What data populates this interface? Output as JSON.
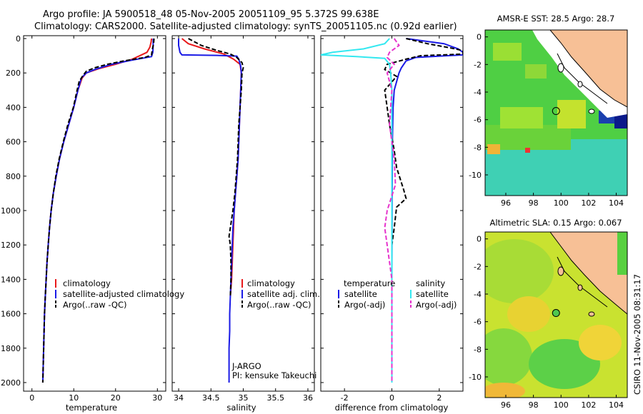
{
  "header": {
    "line1": "Argo profile: JA 5900518_48 05-Nov-2005 20051109_95 5.372S 99.638E",
    "line2": "Climatology: CARS2000. Satellite-adjusted climatology: synTS_20051105.nc (0.92d earlier)"
  },
  "side_text": "CSIRO 11-Nov-2005 08:31:17",
  "colors": {
    "red": "#e8191b",
    "blue": "#1a1ae6",
    "black": "#000000",
    "cyan": "#33e8f0",
    "magenta": "#e633cc",
    "land": "#f7c096"
  },
  "chart_data": [
    {
      "type": "line",
      "name": "temperature-profile",
      "xlabel": "temperature",
      "xlim": [
        -2,
        32
      ],
      "ylim": [
        0,
        2050
      ],
      "xticks": [
        0,
        10,
        20,
        30
      ],
      "yticks": [
        0,
        200,
        400,
        600,
        800,
        1000,
        1200,
        1400,
        1600,
        1800,
        2000
      ],
      "legend": [
        "climatology",
        "satellite-adjusted climatology",
        "Argo(..raw -QC)"
      ],
      "series": [
        {
          "color": "red",
          "style": "solid",
          "points": [
            [
              28.6,
              0
            ],
            [
              28.5,
              20
            ],
            [
              28.2,
              50
            ],
            [
              27.5,
              80
            ],
            [
              24,
              120
            ],
            [
              20,
              150
            ],
            [
              16,
              175
            ],
            [
              13,
              200
            ],
            [
              12,
              230
            ],
            [
              11,
              300
            ],
            [
              10,
              400
            ],
            [
              8.8,
              500
            ],
            [
              7.6,
              600
            ],
            [
              6.6,
              700
            ],
            [
              5.8,
              800
            ],
            [
              5.1,
              900
            ],
            [
              4.6,
              1000
            ],
            [
              4.2,
              1100
            ],
            [
              3.9,
              1200
            ],
            [
              3.6,
              1300
            ],
            [
              3.4,
              1400
            ],
            [
              3.2,
              1500
            ],
            [
              3.0,
              1600
            ],
            [
              2.9,
              1700
            ],
            [
              2.8,
              1800
            ],
            [
              2.7,
              1900
            ],
            [
              2.6,
              2000
            ]
          ]
        },
        {
          "color": "blue",
          "style": "solid",
          "points": [
            [
              29,
              0
            ],
            [
              29,
              40
            ],
            [
              28.9,
              80
            ],
            [
              28.6,
              105
            ],
            [
              24,
              125
            ],
            [
              19,
              150
            ],
            [
              15,
              180
            ],
            [
              13,
              200
            ],
            [
              11.8,
              230
            ],
            [
              11,
              300
            ],
            [
              10,
              400
            ],
            [
              8.8,
              500
            ],
            [
              7.6,
              600
            ],
            [
              6.6,
              700
            ],
            [
              5.8,
              800
            ],
            [
              5.1,
              900
            ],
            [
              4.6,
              1000
            ],
            [
              4.2,
              1100
            ],
            [
              3.9,
              1200
            ],
            [
              3.6,
              1300
            ],
            [
              3.4,
              1400
            ],
            [
              3.2,
              1500
            ],
            [
              3.0,
              1600
            ],
            [
              2.9,
              1700
            ],
            [
              2.8,
              1800
            ],
            [
              2.7,
              1900
            ],
            [
              2.6,
              2000
            ]
          ]
        },
        {
          "color": "black",
          "style": "dashed",
          "points": [
            [
              29.2,
              0
            ],
            [
              29.1,
              30
            ],
            [
              28.8,
              60
            ],
            [
              28.6,
              95
            ],
            [
              27,
              110
            ],
            [
              22,
              130
            ],
            [
              18,
              150
            ],
            [
              15,
              170
            ],
            [
              13,
              190
            ],
            [
              12.2,
              215
            ],
            [
              11.3,
              250
            ],
            [
              10.8,
              300
            ],
            [
              9.9,
              400
            ],
            [
              8.6,
              500
            ],
            [
              7.5,
              600
            ],
            [
              6.5,
              700
            ],
            [
              5.7,
              800
            ],
            [
              5.1,
              900
            ],
            [
              4.6,
              1000
            ],
            [
              4.2,
              1100
            ],
            [
              3.9,
              1200
            ],
            [
              3.6,
              1300
            ],
            [
              3.4,
              1400
            ],
            [
              3.2,
              1500
            ],
            [
              3.0,
              1600
            ],
            [
              2.9,
              1700
            ],
            [
              2.8,
              1800
            ],
            [
              2.7,
              1900
            ],
            [
              2.6,
              2000
            ]
          ]
        }
      ]
    },
    {
      "type": "line",
      "name": "salinity-profile",
      "xlabel": "salinity",
      "xlim": [
        33.9,
        36.1
      ],
      "ylim": [
        0,
        2050
      ],
      "xticks": [
        34,
        34.5,
        35,
        35.5,
        36
      ],
      "legend": [
        "climatology",
        "satellite adj. clim.",
        "Argo(..raw -QC)"
      ],
      "annotations": [
        "J-ARGO",
        "PI: kensuke Takeuchi"
      ],
      "series": [
        {
          "color": "red",
          "style": "solid",
          "points": [
            [
              34.05,
              0
            ],
            [
              34.15,
              30
            ],
            [
              34.4,
              60
            ],
            [
              34.7,
              90
            ],
            [
              34.85,
              120
            ],
            [
              34.95,
              150
            ],
            [
              34.97,
              200
            ],
            [
              34.96,
              300
            ],
            [
              34.95,
              400
            ],
            [
              34.94,
              500
            ],
            [
              34.93,
              600
            ],
            [
              34.92,
              700
            ],
            [
              34.9,
              800
            ],
            [
              34.88,
              900
            ],
            [
              34.86,
              1000
            ],
            [
              34.85,
              1100
            ],
            [
              34.84,
              1200
            ],
            [
              34.83,
              1300
            ],
            [
              34.82,
              1400
            ],
            [
              34.8,
              1500
            ]
          ]
        },
        {
          "color": "blue",
          "style": "solid",
          "points": [
            [
              34.0,
              0
            ],
            [
              34.0,
              40
            ],
            [
              34.02,
              80
            ],
            [
              34.05,
              95
            ],
            [
              34.6,
              98
            ],
            [
              34.9,
              102
            ],
            [
              34.93,
              120
            ],
            [
              34.96,
              160
            ],
            [
              34.97,
              200
            ],
            [
              34.96,
              300
            ],
            [
              34.95,
              400
            ],
            [
              34.94,
              500
            ],
            [
              34.93,
              600
            ],
            [
              34.92,
              700
            ],
            [
              34.9,
              800
            ],
            [
              34.88,
              900
            ],
            [
              34.86,
              1000
            ],
            [
              34.84,
              1100
            ],
            [
              34.83,
              1200
            ],
            [
              34.82,
              1300
            ],
            [
              34.81,
              1400
            ],
            [
              34.8,
              1500
            ],
            [
              34.79,
              1600
            ],
            [
              34.79,
              1700
            ],
            [
              34.78,
              1800
            ],
            [
              34.78,
              1900
            ],
            [
              34.78,
              2000
            ]
          ]
        },
        {
          "color": "black",
          "style": "dashed",
          "points": [
            [
              34.15,
              0
            ],
            [
              34.35,
              40
            ],
            [
              34.6,
              70
            ],
            [
              34.8,
              90
            ],
            [
              34.9,
              110
            ],
            [
              34.98,
              140
            ],
            [
              35.0,
              170
            ],
            [
              34.98,
              200
            ],
            [
              34.97,
              300
            ],
            [
              34.95,
              400
            ],
            [
              34.93,
              500
            ],
            [
              34.92,
              600
            ],
            [
              34.91,
              700
            ],
            [
              34.89,
              800
            ],
            [
              34.87,
              900
            ],
            [
              34.84,
              1000
            ],
            [
              34.8,
              1100
            ],
            [
              34.78,
              1150
            ],
            [
              34.8,
              1200
            ],
            [
              34.81,
              1300
            ],
            [
              34.81,
              1400
            ],
            [
              34.8,
              1500
            ]
          ]
        }
      ]
    },
    {
      "type": "line",
      "name": "difference-profile",
      "xlabel": "difference from climatology",
      "xlim": [
        -3,
        3
      ],
      "ylim": [
        0,
        2050
      ],
      "xticks": [
        -2,
        0,
        2
      ],
      "legend_headers": [
        "temperature",
        "salinity"
      ],
      "legend": [
        "satellite",
        "Argo(-adj)",
        "satellite",
        "Argo(-adj)"
      ],
      "series": [
        {
          "color": "blue",
          "style": "solid",
          "points": [
            [
              0.6,
              0
            ],
            [
              2.2,
              30
            ],
            [
              2.8,
              60
            ],
            [
              3,
              80
            ],
            [
              3,
              95
            ],
            [
              1,
              110
            ],
            [
              0.6,
              130
            ],
            [
              0.4,
              170
            ],
            [
              0.3,
              200
            ],
            [
              0.1,
              300
            ],
            [
              0.05,
              400
            ],
            [
              0.02,
              600
            ],
            [
              0.01,
              1000
            ],
            [
              0,
              1400
            ],
            [
              0,
              2000
            ]
          ]
        },
        {
          "color": "black",
          "style": "dashed",
          "points": [
            [
              0.6,
              0
            ],
            [
              1.5,
              30
            ],
            [
              2.5,
              55
            ],
            [
              3,
              70
            ],
            [
              3,
              90
            ],
            [
              1.2,
              100
            ],
            [
              0.6,
              120
            ],
            [
              -0.2,
              150
            ],
            [
              -0.3,
              180
            ],
            [
              0.2,
              220
            ],
            [
              -0.3,
              300
            ],
            [
              -0.2,
              400
            ],
            [
              -0.1,
              500
            ],
            [
              0.1,
              650
            ],
            [
              0.2,
              750
            ],
            [
              0.5,
              880
            ],
            [
              0.6,
              930
            ],
            [
              0.2,
              980
            ],
            [
              0.1,
              1100
            ],
            [
              0,
              1200
            ],
            [
              0,
              1400
            ],
            [
              0,
              1600
            ],
            [
              0,
              2000
            ]
          ]
        },
        {
          "color": "cyan",
          "style": "solid",
          "points": [
            [
              -0.1,
              0
            ],
            [
              -0.3,
              30
            ],
            [
              -1.2,
              60
            ],
            [
              -2.5,
              80
            ],
            [
              -3,
              95
            ],
            [
              -1.5,
              105
            ],
            [
              -0.3,
              115
            ],
            [
              -0.1,
              150
            ],
            [
              -0.05,
              200
            ],
            [
              0,
              300
            ],
            [
              0,
              2000
            ]
          ]
        },
        {
          "color": "magenta",
          "style": "dashed",
          "points": [
            [
              0.1,
              0
            ],
            [
              0.3,
              40
            ],
            [
              -0.1,
              80
            ],
            [
              -0.2,
              110
            ],
            [
              0.1,
              150
            ],
            [
              -0.2,
              200
            ],
            [
              0,
              300
            ],
            [
              -0.1,
              500
            ],
            [
              0.1,
              700
            ],
            [
              0.15,
              850
            ],
            [
              -0.2,
              1000
            ],
            [
              -0.3,
              1100
            ],
            [
              -0.2,
              1200
            ],
            [
              0,
              1400
            ],
            [
              0,
              1600
            ],
            [
              0,
              2000
            ]
          ]
        }
      ]
    },
    {
      "type": "heatmap",
      "name": "sst-map",
      "title": "AMSR-E SST: 28.5 Argo: 28.7",
      "xlim": [
        94.5,
        104.8
      ],
      "ylim": [
        -11.5,
        0.5
      ],
      "xticks": [
        96,
        98,
        100,
        102,
        104
      ],
      "yticks": [
        0,
        -2,
        -4,
        -6,
        -8,
        -10
      ],
      "float_position": [
        99.638,
        -5.372
      ]
    },
    {
      "type": "heatmap",
      "name": "sla-map",
      "title": "Altimetric SLA: 0.15 Argo: 0.067",
      "xlim": [
        94.5,
        104.8
      ],
      "ylim": [
        -11.5,
        0.5
      ],
      "xticks": [
        96,
        98,
        100,
        102,
        104
      ],
      "yticks": [
        0,
        -2,
        -4,
        -6,
        -8,
        -10
      ],
      "float_position": [
        99.638,
        -5.372
      ]
    }
  ]
}
